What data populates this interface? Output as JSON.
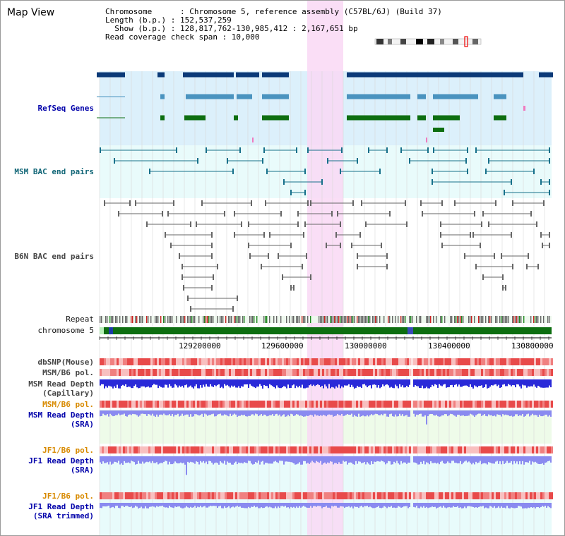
{
  "title": "Map View",
  "info": {
    "chromosome": "Chromosome      : Chromosome 5, reference assembly (C57BL/6J) (Build 37)",
    "length": "Length (b.p.) : 152,537,259",
    "show": "  Show (b.p.) : 128,817,762-130,985,412 : 2,167,651 bp",
    "coverage": "Read coverage check span : 10,000"
  },
  "tracks": {
    "refseq": "RefSeq Genes",
    "msm_bac": "MSM BAC end pairs",
    "b6n_bac": "B6N BAC end pairs",
    "repeat": "Repeat",
    "chromosome": "chromosome 5",
    "dbsnp": "dbSNP(Mouse)",
    "msm_b6_pol": "MSM/B6 pol.",
    "msm_depth_cap_1": "MSM Read Depth",
    "msm_depth_cap_2": "(Capillary)",
    "msm_b6_pol2": "MSM/B6 pol.",
    "msm_depth_sra_1": "MSM Read Depth",
    "msm_depth_sra_2": "(SRA)",
    "jf1_b6_pol": "JF1/B6 pol.",
    "jf1_depth_sra_1": "JF1 Read Depth",
    "jf1_depth_sra_2": "(SRA)",
    "jf1_b6_pol2": "JF1/B6 pol.",
    "jf1_depth_trim_1": "JF1 Read Depth",
    "jf1_depth_trim_2": "(SRA trimmed)"
  },
  "axis": {
    "ticks": [
      "129200000",
      "129600000",
      "130000000",
      "130400000",
      "130800000"
    ]
  },
  "colors": {
    "highlight": "#f9d8f4",
    "refseq_bg": "#dcf0fb",
    "msm_bg": "#e9fbfb",
    "gene_dark": "#0b3a78",
    "gene_mid": "#4a93bf",
    "gene_green": "#0d6e10",
    "bac_teal": "#16708a",
    "bac_gray": "#666666",
    "depth_blue": "#2a2ad8",
    "depth_light": "#8a8af0",
    "pol_red": "#e84a4a"
  }
}
